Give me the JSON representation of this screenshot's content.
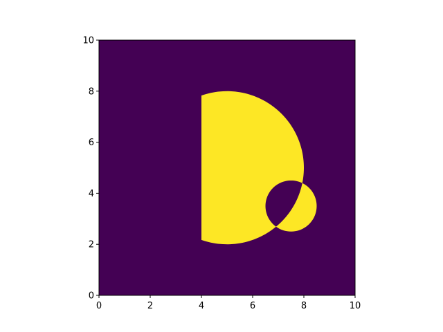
{
  "chart_data": {
    "type": "heatmap",
    "title": "",
    "xlabel": "",
    "ylabel": "",
    "xlim": [
      0,
      10
    ],
    "ylim": [
      0,
      10
    ],
    "grid": false,
    "colormap": "viridis",
    "colors": {
      "low": "#440154",
      "high": "#fde725"
    },
    "x_ticks": [
      "0",
      "2",
      "4",
      "6",
      "8",
      "10"
    ],
    "y_ticks": [
      "0",
      "2",
      "4",
      "6",
      "8",
      "10"
    ],
    "x_tick_values": [
      0,
      2,
      4,
      6,
      8,
      10
    ],
    "y_tick_values": [
      0,
      2,
      4,
      6,
      8,
      10
    ],
    "shape": {
      "description": "value 1 inside circle(center (5,5), r 3) with x >= 4, minus circle(center (7.5,3.5), r 1); 0 elsewhere",
      "outer_circle": {
        "cx": 5,
        "cy": 5,
        "r": 3
      },
      "x_min": 4,
      "hole_circle": {
        "cx": 7.5,
        "cy": 3.5,
        "r": 1
      }
    },
    "values_range": [
      0,
      1
    ]
  }
}
